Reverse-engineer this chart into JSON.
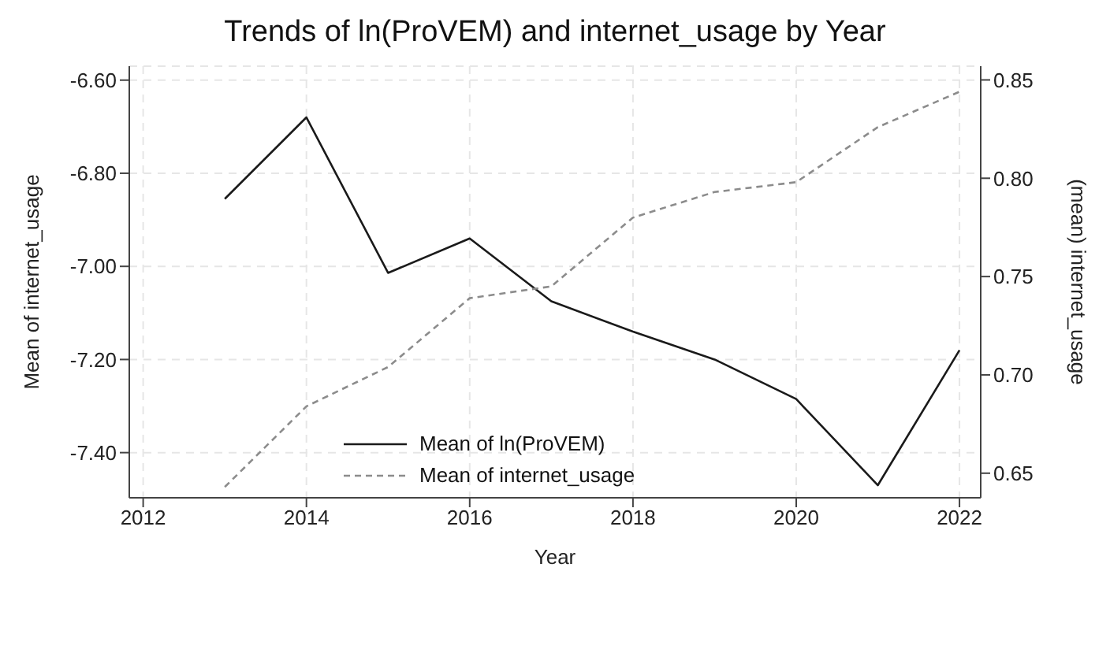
{
  "chart_data": {
    "type": "line",
    "title": "Trends of ln(ProVEM) and internet_usage by Year",
    "xlabel": "Year",
    "ylabel": "Mean of internet_usage",
    "y2label": "(mean) internet_usage",
    "x": [
      2013,
      2014,
      2015,
      2016,
      2017,
      2018,
      2019,
      2020,
      2021,
      2022
    ],
    "series": [
      {
        "name": "Mean of ln(ProVEM)",
        "color": "#1a1a1a",
        "line_style": "solid",
        "values": [
          -6.855,
          -6.68,
          -7.014,
          -6.94,
          -7.075,
          -7.14,
          -7.2,
          -7.285,
          -7.47,
          -7.18
        ]
      },
      {
        "name": "Mean of internet_usage",
        "color": "#8c8c8c",
        "line_style": "dashed",
        "axis": "y2",
        "values": [
          0.643,
          0.684,
          0.704,
          0.739,
          0.745,
          0.78,
          0.793,
          0.798,
          0.826,
          0.844
        ]
      }
    ],
    "xlim": [
      2011.83,
      2022.26
    ],
    "xticks": [
      2012,
      2014,
      2016,
      2018,
      2020,
      2022
    ],
    "ylim": [
      -7.497,
      -6.57
    ],
    "yticks": [
      {
        "value": -6.6,
        "label": "-6.60"
      },
      {
        "value": -6.8,
        "label": "-6.80"
      },
      {
        "value": -7.0,
        "label": "-7.00"
      },
      {
        "value": -7.2,
        "label": "-7.20"
      },
      {
        "value": -7.4,
        "label": "-7.40"
      }
    ],
    "y2lim": [
      0.6375,
      0.857
    ],
    "y2ticks": [
      {
        "value": 0.65,
        "label": "0.65"
      },
      {
        "value": 0.7,
        "label": "0.70"
      },
      {
        "value": 0.75,
        "label": "0.75"
      },
      {
        "value": 0.8,
        "label": "0.80"
      },
      {
        "value": 0.85,
        "label": "0.85"
      }
    ],
    "grid": true,
    "legend": "bottom",
    "marker": "none"
  }
}
